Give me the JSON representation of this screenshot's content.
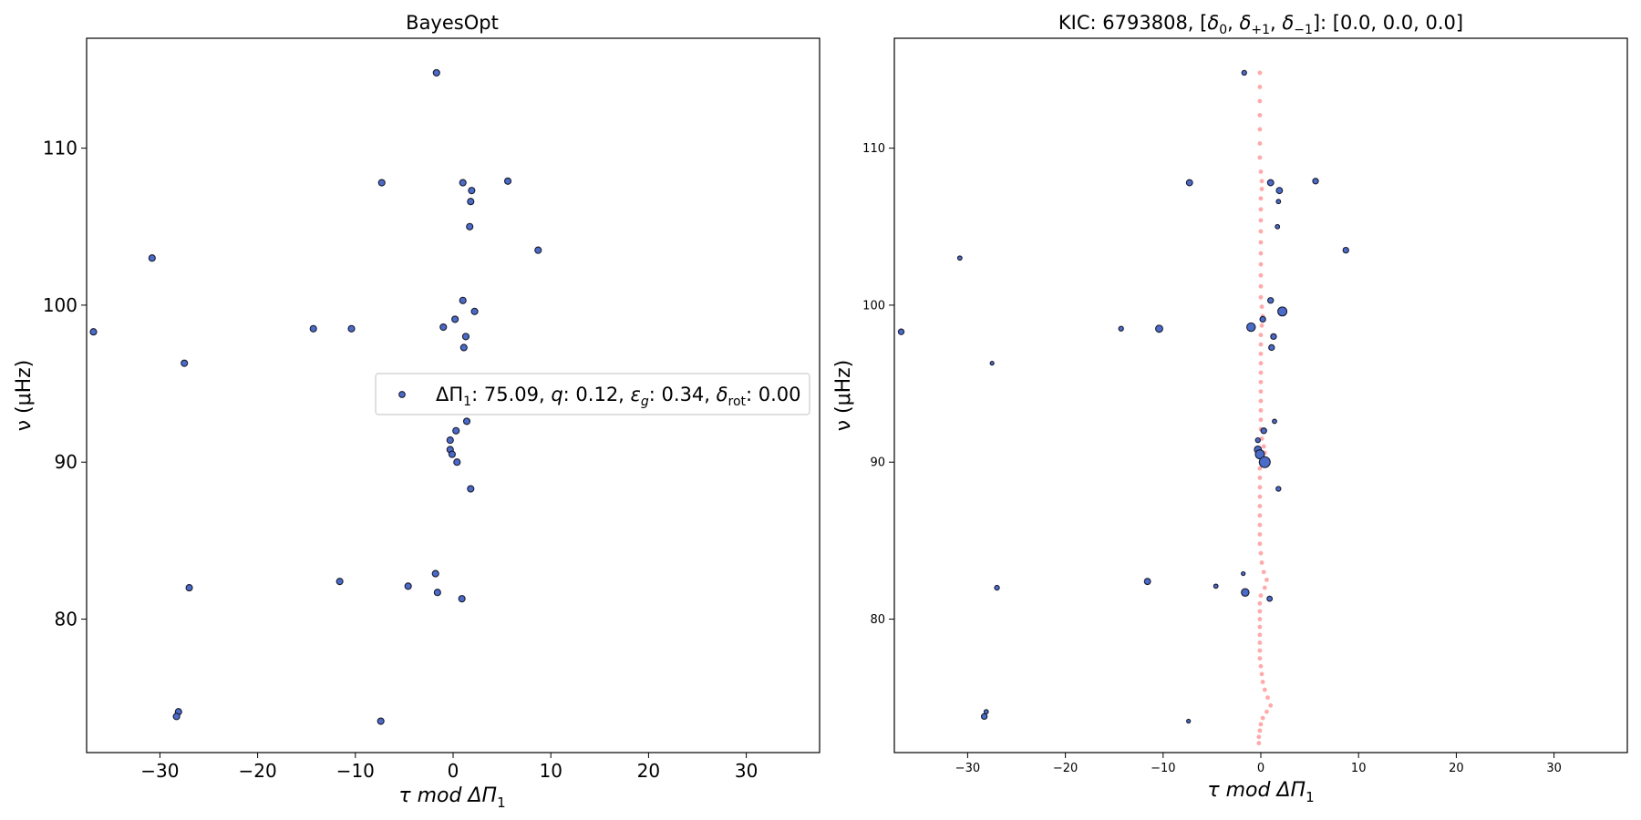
{
  "chart_data": [
    {
      "type": "scatter",
      "title": "BayesOpt",
      "xlabel": "τ mod ΔΠ",
      "xlabel_sub": "1",
      "ylabel": "ν (μHz)",
      "xlim": [
        -37.5,
        37.5
      ],
      "ylim": [
        71.5,
        117.0
      ],
      "x_ticks": [
        -30,
        -20,
        -10,
        0,
        10,
        20,
        30
      ],
      "y_ticks": [
        80,
        90,
        100,
        110
      ],
      "tick_labels_x": [
        "−30",
        "−20",
        "−10",
        "0",
        "10",
        "20",
        "30"
      ],
      "tick_labels_y": [
        "80",
        "90",
        "100",
        "110"
      ],
      "grid": false,
      "legend_position": "center-right",
      "legend_label": "ΔΠ₁: 75.09, q: 0.12, ε_g: 0.34, δ_rot: 0.00",
      "legend": {
        "l1": "ΔΠ",
        "l1s": "1",
        "l2": ": 75.09, ",
        "l3": "q",
        "l4": ": 0.12, ",
        "l5": "ε",
        "l5s": "g",
        "l6": ": 0.34, ",
        "l7": "δ",
        "l7s": "rot",
        "l8": ": 0.00"
      },
      "marker_color": "#4a6bc7",
      "marker_edge": "#1a1a2e",
      "series": [
        {
          "points": [
            [
              -1.7,
              114.8
            ],
            [
              -7.3,
              107.8
            ],
            [
              1.0,
              107.8
            ],
            [
              1.9,
              107.3
            ],
            [
              1.8,
              106.6
            ],
            [
              5.6,
              107.9
            ],
            [
              1.7,
              105.0
            ],
            [
              8.7,
              103.5
            ],
            [
              -30.8,
              103.0
            ],
            [
              1.0,
              100.3
            ],
            [
              2.2,
              99.6
            ],
            [
              0.2,
              99.1
            ],
            [
              -1.0,
              98.6
            ],
            [
              -36.8,
              98.3
            ],
            [
              -14.3,
              98.5
            ],
            [
              -10.4,
              98.5
            ],
            [
              1.3,
              98.0
            ],
            [
              1.1,
              97.3
            ],
            [
              -27.5,
              96.3
            ],
            [
              1.4,
              92.6
            ],
            [
              0.3,
              92.0
            ],
            [
              -0.3,
              91.4
            ],
            [
              -0.3,
              90.8
            ],
            [
              -0.1,
              90.5
            ],
            [
              0.4,
              90.0
            ],
            [
              1.8,
              88.3
            ],
            [
              -11.6,
              82.4
            ],
            [
              -1.8,
              82.9
            ],
            [
              -4.6,
              82.1
            ],
            [
              -27.0,
              82.0
            ],
            [
              -1.6,
              81.7
            ],
            [
              0.9,
              81.3
            ],
            [
              -28.1,
              74.1
            ],
            [
              -28.3,
              73.8
            ],
            [
              -7.4,
              73.5
            ]
          ]
        }
      ]
    },
    {
      "type": "scatter",
      "title": "KIC: 6793808, [δ₀, δ₊₁, δ₋₁]: [0.0, 0.0, 0.0]",
      "title_parts": {
        "a": "KIC: 6793808, [",
        "d": "δ",
        "s0": "0",
        "s1": "+1",
        "s2": "−1",
        "sep": ", ",
        "b": "]: [0.0, 0.0, 0.0]"
      },
      "xlabel": "τ mod ΔΠ",
      "xlabel_sub": "1",
      "ylabel": "ν (μHz)",
      "xlim": [
        -37.5,
        37.5
      ],
      "ylim": [
        71.5,
        117.0
      ],
      "x_ticks": [
        -30,
        -20,
        -10,
        0,
        10,
        20,
        30
      ],
      "y_ticks": [
        80,
        90,
        100,
        110
      ],
      "tick_labels_x": [
        "−30",
        "−20",
        "−10",
        "0",
        "10",
        "20",
        "30"
      ],
      "tick_labels_y": [
        "80",
        "90",
        "100",
        "110"
      ],
      "grid": false,
      "marker_color": "#4a6bc7",
      "marker_edge": "#1a1a2e",
      "model_color": "#ffaaaa",
      "series": [
        {
          "name": "observed",
          "points": [
            [
              -1.7,
              114.8,
              1.0
            ],
            [
              -7.3,
              107.8,
              1.3
            ],
            [
              1.0,
              107.8,
              1.3
            ],
            [
              1.9,
              107.3,
              1.3
            ],
            [
              1.8,
              106.6,
              0.9
            ],
            [
              5.6,
              107.9,
              1.2
            ],
            [
              1.7,
              105.0,
              0.9
            ],
            [
              8.7,
              103.5,
              1.2
            ],
            [
              -30.8,
              103.0,
              0.9
            ],
            [
              1.0,
              100.3,
              1.2
            ],
            [
              2.2,
              99.6,
              1.9
            ],
            [
              0.2,
              99.1,
              1.2
            ],
            [
              -1.0,
              98.6,
              1.8
            ],
            [
              -36.8,
              98.3,
              1.2
            ],
            [
              -14.3,
              98.5,
              1.0
            ],
            [
              -10.4,
              98.5,
              1.5
            ],
            [
              1.3,
              98.0,
              1.2
            ],
            [
              1.1,
              97.3,
              1.2
            ],
            [
              -27.5,
              96.3,
              0.8
            ],
            [
              1.4,
              92.6,
              0.9
            ],
            [
              0.3,
              92.0,
              1.2
            ],
            [
              -0.3,
              91.4,
              1.0
            ],
            [
              -0.3,
              90.8,
              1.5
            ],
            [
              -0.1,
              90.5,
              1.9
            ],
            [
              0.4,
              90.0,
              2.3
            ],
            [
              1.8,
              88.3,
              1.0
            ],
            [
              -11.6,
              82.4,
              1.3
            ],
            [
              -1.8,
              82.9,
              0.8
            ],
            [
              -4.6,
              82.1,
              0.9
            ],
            [
              -27.0,
              82.0,
              1.0
            ],
            [
              -1.6,
              81.7,
              1.6
            ],
            [
              0.9,
              81.3,
              1.1
            ],
            [
              -28.1,
              74.1,
              0.9
            ],
            [
              -28.3,
              73.8,
              1.2
            ],
            [
              -7.4,
              73.5,
              0.8
            ]
          ]
        },
        {
          "name": "model",
          "points": [
            [
              -0.1,
              114.8
            ],
            [
              -0.1,
              113.9
            ],
            [
              -0.1,
              113.0
            ],
            [
              -0.1,
              112.1
            ],
            [
              -0.1,
              111.2
            ],
            [
              -0.1,
              110.3
            ],
            [
              -0.1,
              109.4
            ],
            [
              0.0,
              108.5
            ],
            [
              0.1,
              107.9
            ],
            [
              0.1,
              107.4
            ],
            [
              0.0,
              106.8
            ],
            [
              0.0,
              106.1
            ],
            [
              0.0,
              105.4
            ],
            [
              0.0,
              104.7
            ],
            [
              0.0,
              104.0
            ],
            [
              0.0,
              103.3
            ],
            [
              0.0,
              102.6
            ],
            [
              0.0,
              101.9
            ],
            [
              0.0,
              101.2
            ],
            [
              0.0,
              100.5
            ],
            [
              0.1,
              99.9
            ],
            [
              0.2,
              99.3
            ],
            [
              0.1,
              98.7
            ],
            [
              0.0,
              98.1
            ],
            [
              0.0,
              97.5
            ],
            [
              0.0,
              96.9
            ],
            [
              0.0,
              96.3
            ],
            [
              0.0,
              95.7
            ],
            [
              0.0,
              95.1
            ],
            [
              0.0,
              94.5
            ],
            [
              0.0,
              93.9
            ],
            [
              0.0,
              93.3
            ],
            [
              0.0,
              92.7
            ],
            [
              0.0,
              92.1
            ],
            [
              0.1,
              91.5
            ],
            [
              0.3,
              91.0
            ],
            [
              0.4,
              90.6
            ],
            [
              0.1,
              90.1
            ],
            [
              -0.1,
              89.6
            ],
            [
              -0.1,
              89.0
            ],
            [
              -0.1,
              88.4
            ],
            [
              -0.1,
              87.8
            ],
            [
              -0.1,
              87.2
            ],
            [
              -0.1,
              86.6
            ],
            [
              -0.1,
              86.0
            ],
            [
              -0.1,
              85.4
            ],
            [
              -0.1,
              84.8
            ],
            [
              0.0,
              84.2
            ],
            [
              0.1,
              83.6
            ],
            [
              0.3,
              83.0
            ],
            [
              0.6,
              82.5
            ],
            [
              0.4,
              82.0
            ],
            [
              0.0,
              81.5
            ],
            [
              -0.1,
              81.0
            ],
            [
              -0.1,
              80.5
            ],
            [
              -0.1,
              80.0
            ],
            [
              -0.1,
              79.5
            ],
            [
              -0.1,
              79.0
            ],
            [
              -0.1,
              78.5
            ],
            [
              -0.1,
              78.0
            ],
            [
              -0.1,
              77.5
            ],
            [
              0.0,
              77.0
            ],
            [
              0.1,
              76.5
            ],
            [
              0.2,
              76.0
            ],
            [
              0.4,
              75.5
            ],
            [
              0.7,
              75.0
            ],
            [
              1.0,
              74.5
            ],
            [
              0.6,
              74.1
            ],
            [
              0.2,
              73.7
            ],
            [
              0.0,
              73.3
            ],
            [
              -0.1,
              72.9
            ],
            [
              -0.2,
              72.5
            ],
            [
              -0.2,
              72.1
            ]
          ]
        }
      ]
    }
  ]
}
